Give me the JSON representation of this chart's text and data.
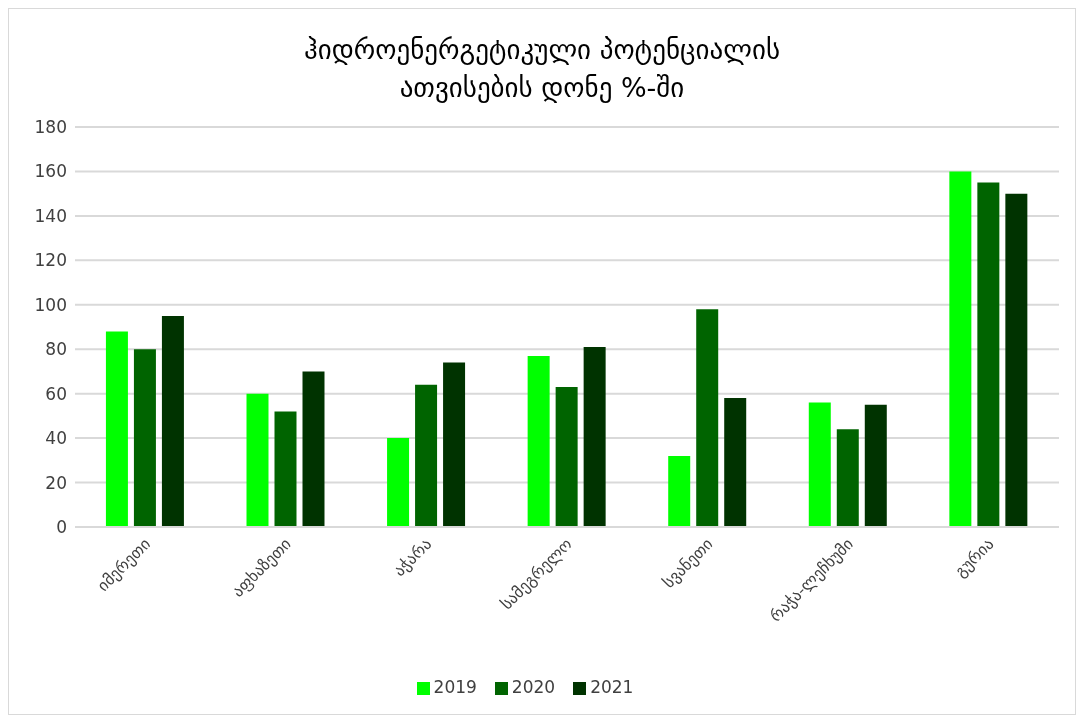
{
  "chart_data": {
    "type": "bar",
    "title": "ჰიდროენერგეტიკული პოტენციალის ათვისების დონე %-ში",
    "categories": [
      "იმერეთი",
      "აფხაზეთი",
      "აჭარა",
      "სამეგრელო",
      "სვანეთი",
      "რაჭა-ლეჩხუმი",
      "გურია"
    ],
    "series": [
      {
        "name": "2019",
        "color": "#00ff00",
        "values": [
          88,
          60,
          40,
          77,
          32,
          56,
          160
        ]
      },
      {
        "name": "2020",
        "color": "#006400",
        "values": [
          80,
          52,
          64,
          63,
          98,
          44,
          155
        ]
      },
      {
        "name": "2021",
        "color": "#003300",
        "values": [
          95,
          70,
          74,
          81,
          58,
          55,
          150
        ]
      }
    ],
    "ylim": [
      0,
      180
    ],
    "yticks": [
      0,
      20,
      40,
      60,
      80,
      100,
      120,
      140,
      160,
      180
    ],
    "grid": "y",
    "legend": "bottom"
  }
}
